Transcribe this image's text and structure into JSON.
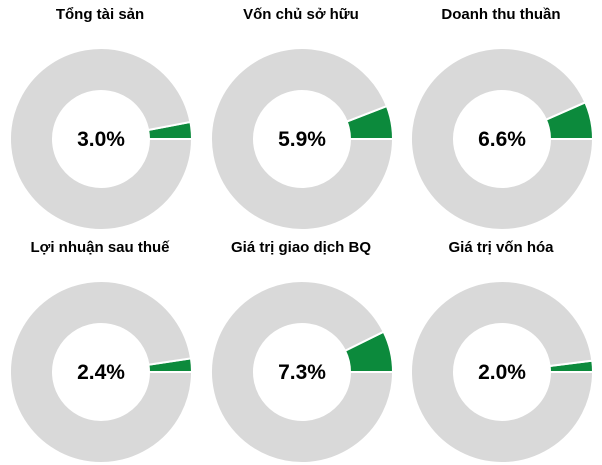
{
  "chart_data": [
    {
      "type": "pie",
      "title": "Tổng tài sản",
      "center_label": "3.0%",
      "slices": [
        {
          "value": 3.0,
          "color": "#0C8A3C"
        },
        {
          "value": 97.0,
          "color": "#D9D9D9"
        }
      ]
    },
    {
      "type": "pie",
      "title": "Vốn chủ sở hữu",
      "center_label": "5.9%",
      "slices": [
        {
          "value": 5.9,
          "color": "#0C8A3C"
        },
        {
          "value": 94.1,
          "color": "#D9D9D9"
        }
      ]
    },
    {
      "type": "pie",
      "title": "Doanh thu thuần",
      "center_label": "6.6%",
      "slices": [
        {
          "value": 6.6,
          "color": "#0C8A3C"
        },
        {
          "value": 93.4,
          "color": "#D9D9D9"
        }
      ]
    },
    {
      "type": "pie",
      "title": "Lợi nhuận sau thuế",
      "center_label": "2.4%",
      "slices": [
        {
          "value": 2.4,
          "color": "#0C8A3C"
        },
        {
          "value": 97.6,
          "color": "#D9D9D9"
        }
      ]
    },
    {
      "type": "pie",
      "title": "Giá trị giao dịch BQ",
      "center_label": "7.3%",
      "slices": [
        {
          "value": 7.3,
          "color": "#0C8A3C"
        },
        {
          "value": 92.7,
          "color": "#D9D9D9"
        }
      ]
    },
    {
      "type": "pie",
      "title": "Giá trị vốn hóa",
      "center_label": "2.0%",
      "slices": [
        {
          "value": 2.0,
          "color": "#0C8A3C"
        },
        {
          "value": 98.0,
          "color": "#D9D9D9"
        }
      ]
    }
  ]
}
